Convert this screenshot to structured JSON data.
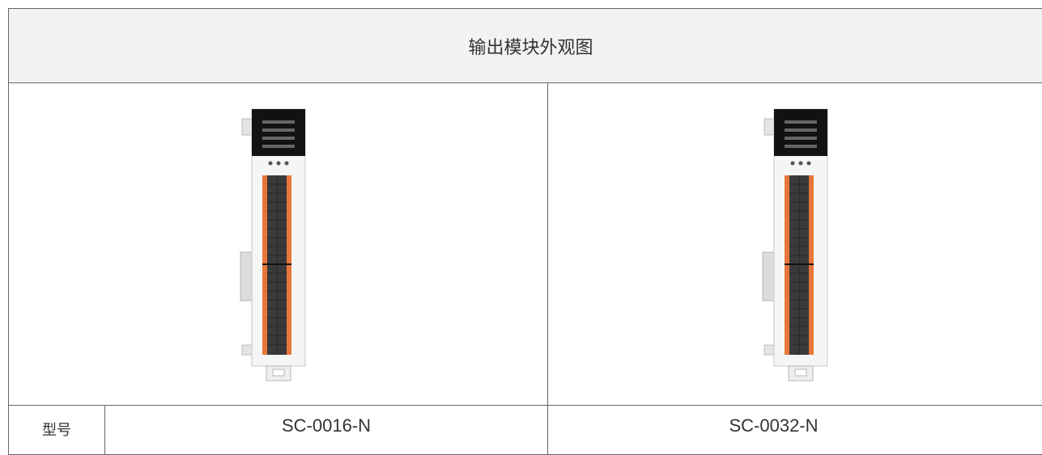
{
  "table": {
    "title": "输出模块外观图",
    "label": "型号",
    "models": [
      "SC-0016-N",
      "SC-0032-N"
    ]
  }
}
